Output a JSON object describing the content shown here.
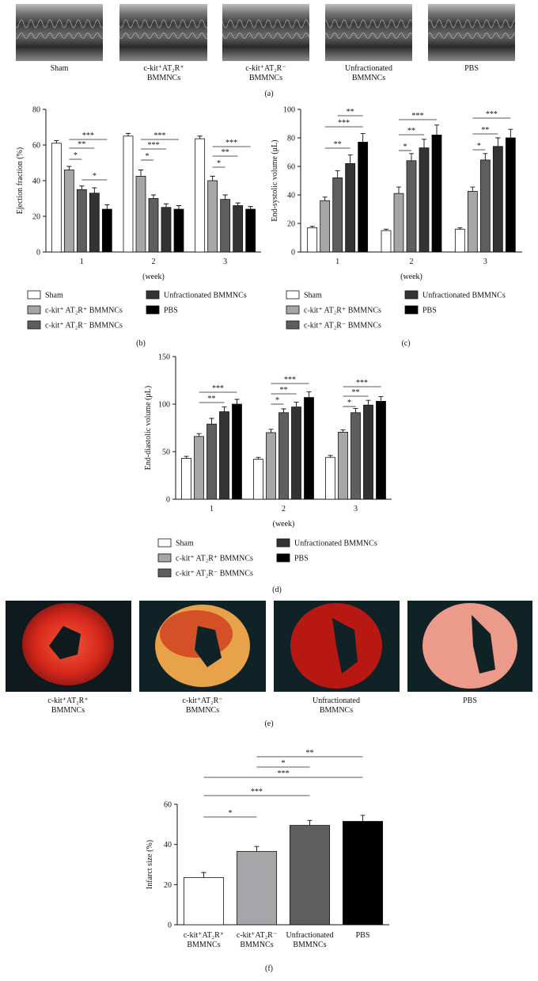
{
  "echo_panel": {
    "captions": [
      "Sham",
      "c-kit⁺AT₂R⁺ BMMNCs",
      "c-kit⁺AT₂R⁻ BMMNCs",
      "Unfractionated BMMNCs",
      "PBS"
    ],
    "panel_label": "(a)"
  },
  "heart_panel": {
    "captions": [
      "c-kit⁺AT₂R⁺ BMMNCs",
      "c-kit⁺AT₂R⁻ BMMNCs",
      "Unfractionated BMMNCs",
      "PBS"
    ],
    "panel_label": "(e)"
  },
  "chart_data": [
    {
      "type": "bar",
      "panel_label": "(b)",
      "y_label": "Ejection fraction (%)",
      "x_label": "(week)",
      "categories": [
        "1",
        "2",
        "3"
      ],
      "ylim": [
        0,
        80
      ],
      "yticks": [
        0,
        20,
        40,
        60,
        80
      ],
      "series": [
        {
          "name": "Sham",
          "color": "#ffffff",
          "values": [
            61,
            65,
            63.5
          ],
          "errors": [
            1.5,
            1.5,
            1.5
          ]
        },
        {
          "name": "c-kit⁺ AT₂R⁺ BMMNCs",
          "color": "#a6a6a6",
          "values": [
            46,
            42.5,
            40
          ],
          "errors": [
            2,
            3.5,
            2.5
          ]
        },
        {
          "name": "c-kit⁺ AT₂R⁻ BMMNCs",
          "color": "#5e5e5e",
          "values": [
            35,
            30,
            29.5
          ],
          "errors": [
            2,
            2,
            2.5
          ]
        },
        {
          "name": "Unfractionated BMMNCs",
          "color": "#333333",
          "values": [
            33,
            25,
            26
          ],
          "errors": [
            3,
            2,
            1.5
          ]
        },
        {
          "name": "PBS",
          "color": "#000000",
          "values": [
            24,
            24,
            24
          ],
          "errors": [
            2.5,
            2,
            1.5
          ]
        }
      ],
      "significance": [
        [
          "***",
          "**",
          "*",
          "*"
        ],
        [
          "***",
          "***",
          "*"
        ],
        [
          "***",
          "**",
          "*"
        ]
      ]
    },
    {
      "type": "bar",
      "panel_label": "(c)",
      "y_label": "End-systolic volume (μL)",
      "x_label": "(week)",
      "categories": [
        "1",
        "2",
        "3"
      ],
      "ylim": [
        0,
        100
      ],
      "yticks": [
        0,
        20,
        40,
        60,
        80,
        100
      ],
      "series": [
        {
          "name": "Sham",
          "color": "#ffffff",
          "values": [
            17,
            15,
            16
          ],
          "errors": [
            1,
            1,
            1
          ]
        },
        {
          "name": "c-kit⁺ AT₂R⁺ BMMNCs",
          "color": "#a6a6a6",
          "values": [
            36,
            41,
            42.5
          ],
          "errors": [
            2.5,
            4.5,
            3
          ]
        },
        {
          "name": "c-kit⁺ AT₂R⁻ BMMNCs",
          "color": "#5e5e5e",
          "values": [
            52,
            64,
            64.5
          ],
          "errors": [
            5,
            5,
            4.5
          ]
        },
        {
          "name": "Unfractionated BMMNCs",
          "color": "#333333",
          "values": [
            62,
            73,
            74
          ],
          "errors": [
            6,
            6,
            6
          ]
        },
        {
          "name": "PBS",
          "color": "#000000",
          "values": [
            77,
            82,
            80
          ],
          "errors": [
            6,
            7,
            6
          ]
        }
      ],
      "significance": [
        [
          "**",
          "***",
          "**"
        ],
        [
          "***",
          "**",
          "*"
        ],
        [
          "***",
          "**",
          "*"
        ]
      ]
    },
    {
      "type": "bar",
      "panel_label": "(d)",
      "y_label": "End-diastolic volume (μL)",
      "x_label": "(week)",
      "categories": [
        "1",
        "2",
        "3"
      ],
      "ylim": [
        0,
        150
      ],
      "yticks": [
        0,
        50,
        100,
        150
      ],
      "series": [
        {
          "name": "Sham",
          "color": "#ffffff",
          "values": [
            43,
            42,
            44
          ],
          "errors": [
            2,
            2,
            2
          ]
        },
        {
          "name": "c-kit⁺ AT₂R⁺ BMMNCs",
          "color": "#a6a6a6",
          "values": [
            66,
            70,
            70.5
          ],
          "errors": [
            3,
            3.5,
            2.5
          ]
        },
        {
          "name": "c-kit⁺ AT₂R⁻ BMMNCs",
          "color": "#5e5e5e",
          "values": [
            79,
            91,
            91
          ],
          "errors": [
            6,
            4,
            4.5
          ]
        },
        {
          "name": "Unfractionated BMMNCs",
          "color": "#333333",
          "values": [
            92,
            97,
            99
          ],
          "errors": [
            5,
            5,
            5
          ]
        },
        {
          "name": "PBS",
          "color": "#000000",
          "values": [
            100,
            107,
            103
          ],
          "errors": [
            5,
            6,
            5
          ]
        }
      ],
      "significance": [
        [
          "***",
          "**"
        ],
        [
          "***",
          "**",
          "*"
        ],
        [
          "***",
          "**",
          "*"
        ]
      ]
    },
    {
      "type": "bar",
      "panel_label": "(f)",
      "y_label": "Infarct size (%)",
      "categories": [
        "c-kit⁺AT₂R⁺ BMMNCs",
        "c-kit⁺AT₂R⁻ BMMNCs",
        "Unfractionated BMMNCs",
        "PBS"
      ],
      "values": [
        23.5,
        36.5,
        49.5,
        51.5
      ],
      "errors": [
        2.5,
        2.5,
        2.5,
        3
      ],
      "colors": [
        "#ffffff",
        "#a6a6a9",
        "#5e5e5e",
        "#000000"
      ],
      "ylim": [
        0,
        60
      ],
      "yticks": [
        0,
        20,
        40,
        60
      ],
      "significance": [
        "**",
        "*",
        "***",
        "***",
        "*"
      ]
    }
  ]
}
